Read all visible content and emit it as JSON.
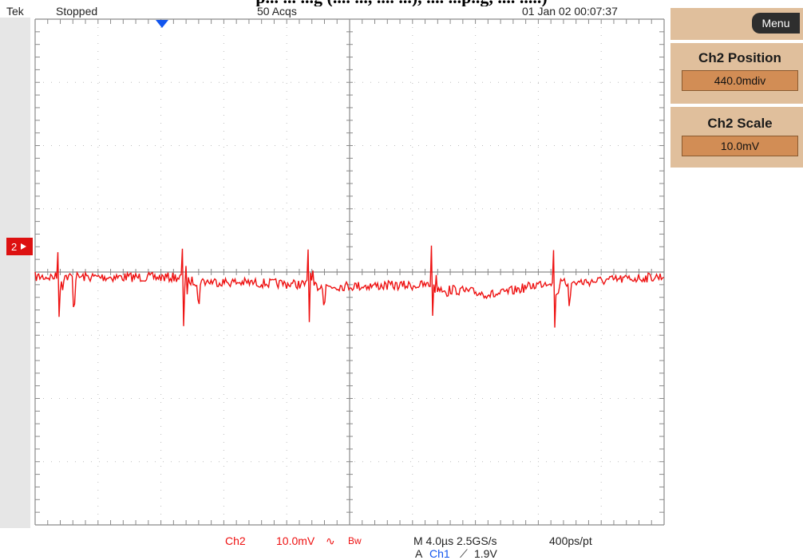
{
  "cut_title": "p... ... ...g (.... ..., .... ...), .... ...p..g, .... .....)",
  "status": {
    "brand": "Tek",
    "state": "Stopped",
    "acqs": "50 Acqs",
    "datetime": "01 Jan 02 00:07:37"
  },
  "menu": {
    "label": "Menu"
  },
  "panel": {
    "position_label": "Ch2 Position",
    "position_value": "440.0mdiv",
    "scale_label": "Ch2 Scale",
    "scale_value": "10.0mV"
  },
  "channel_marker": "2",
  "bottom": {
    "channel": "Ch2",
    "scale": "10.0mV",
    "coupling_symbol": "∿",
    "bw": "Bw",
    "timebase": "M 4.0µs 2.5GS/s",
    "resolution": "400ps/pt",
    "trigger_prefix": "A",
    "trigger_source": "Ch1",
    "trigger_slope_symbol": "⟋",
    "trigger_level": "1.9V"
  },
  "colors": {
    "trace": "#ee1111",
    "grid": "#bdbdbd",
    "accent_blue": "#1155ee",
    "panel_bg": "#e0bf9c",
    "value_bg": "#d28d55"
  },
  "icons": {
    "trigger_position": "trigger-position-icon",
    "channel_marker": "channel-2-ground-icon"
  }
}
